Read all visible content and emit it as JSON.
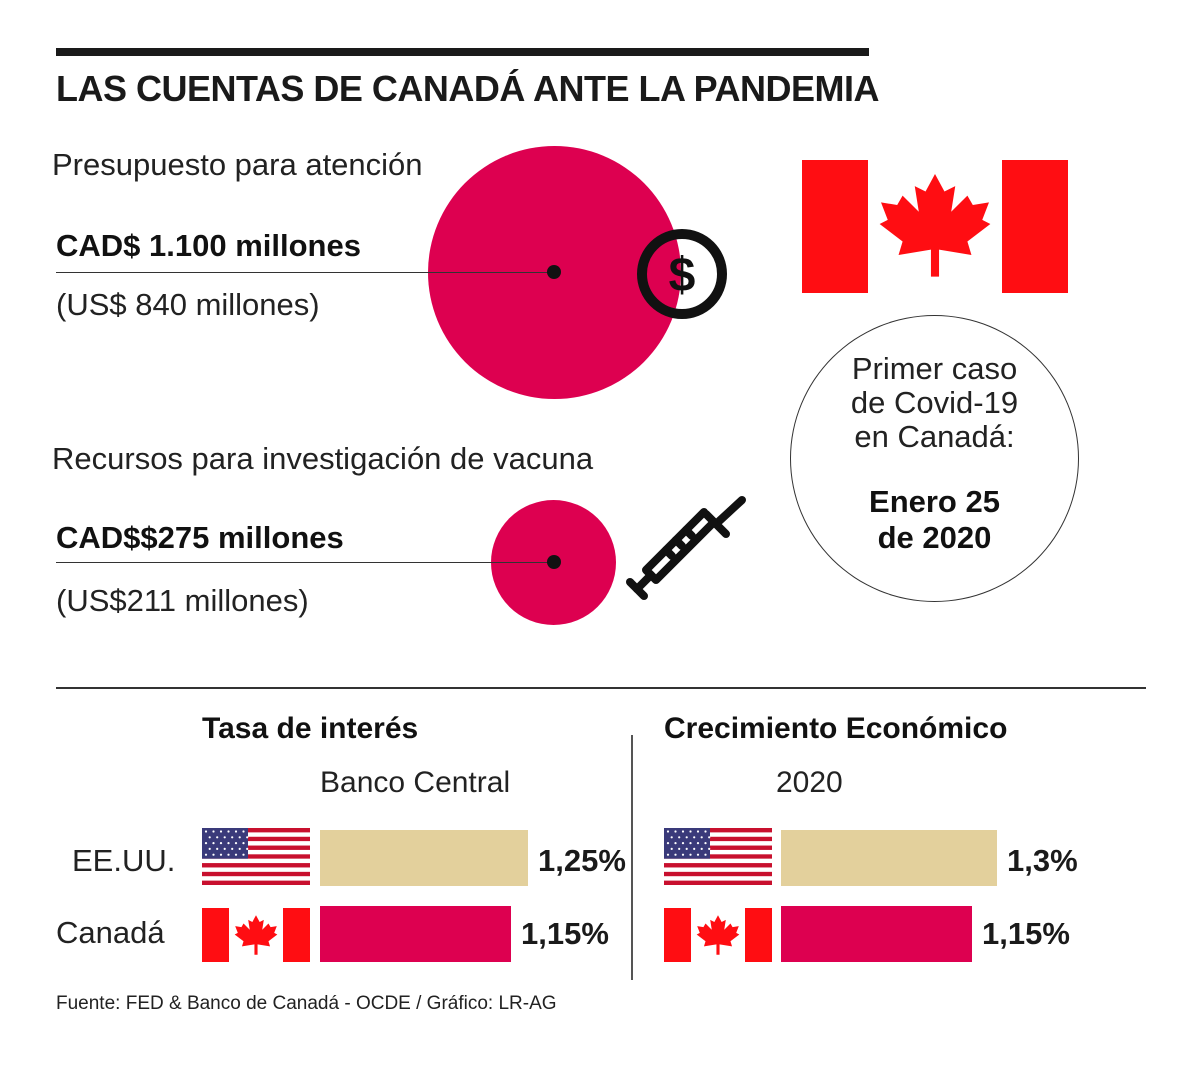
{
  "title": "LAS CUENTAS DE CANADÁ ANTE LA PANDEMIA",
  "budget": {
    "label": "Presupuesto para atención",
    "value": "CAD$ 1.100 millones",
    "value_usd": "(US$ 840 millones)"
  },
  "vaccine": {
    "label": "Recursos para investigación de vacuna",
    "value": "CAD$$275 millones",
    "value_usd": "(US$211 millones)"
  },
  "first_case": {
    "line1": "Primer caso",
    "line2": "de Covid-19",
    "line3": "en Canadá:",
    "date1": "Enero 25",
    "date2": "de 2020"
  },
  "chart_data": [
    {
      "type": "bar",
      "title": "Tasa de interés",
      "subtitle": "Banco Central",
      "categories": [
        "EE.UU.",
        "Canadá"
      ],
      "values": [
        1.25,
        1.15
      ],
      "value_labels": [
        "1,25%",
        "1,15%"
      ],
      "colors": [
        "#e3d09c",
        "#dd0050"
      ]
    },
    {
      "type": "bar",
      "title": "Crecimiento Económico",
      "subtitle": "2020",
      "categories": [
        "EE.UU.",
        "Canadá"
      ],
      "values": [
        1.3,
        1.15
      ],
      "value_labels": [
        "1,3%",
        "1,15%"
      ],
      "colors": [
        "#e3d09c",
        "#dd0050"
      ]
    }
  ],
  "colors": {
    "accent": "#dd0050",
    "tan": "#e3d09c",
    "flag_red": "#ff0d12",
    "us_blue": "#3a3a7a",
    "us_red": "#c8102e"
  },
  "icons": [
    "dollar-coin-icon",
    "syringe-icon",
    "canada-flag",
    "us-flag"
  ],
  "source": "Fuente: FED & Banco de Canadá - OCDE / Gráfico: LR-AG"
}
